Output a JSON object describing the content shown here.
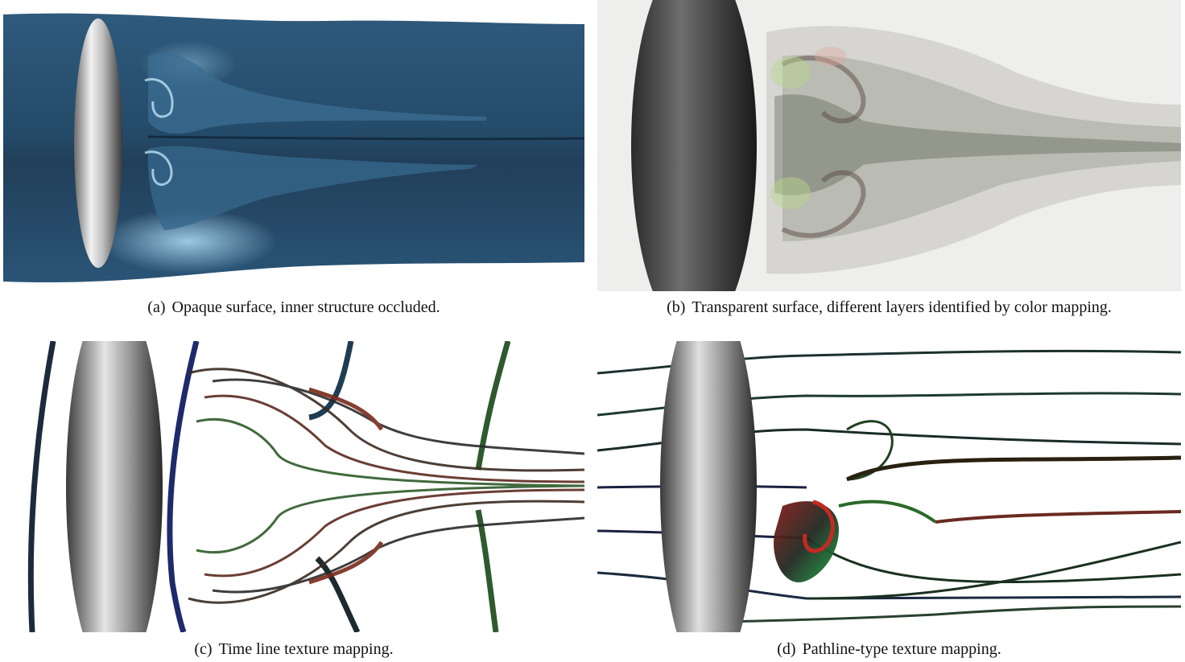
{
  "figure": {
    "panels": [
      {
        "label": "(a)",
        "caption": "Opaque surface, inner structure occluded."
      },
      {
        "label": "(b)",
        "caption": "Transparent surface, different layers identified by color mapping."
      },
      {
        "label": "(c)",
        "caption": "Time line texture mapping."
      },
      {
        "label": "(d)",
        "caption": "Pathline-type texture mapping."
      }
    ]
  }
}
